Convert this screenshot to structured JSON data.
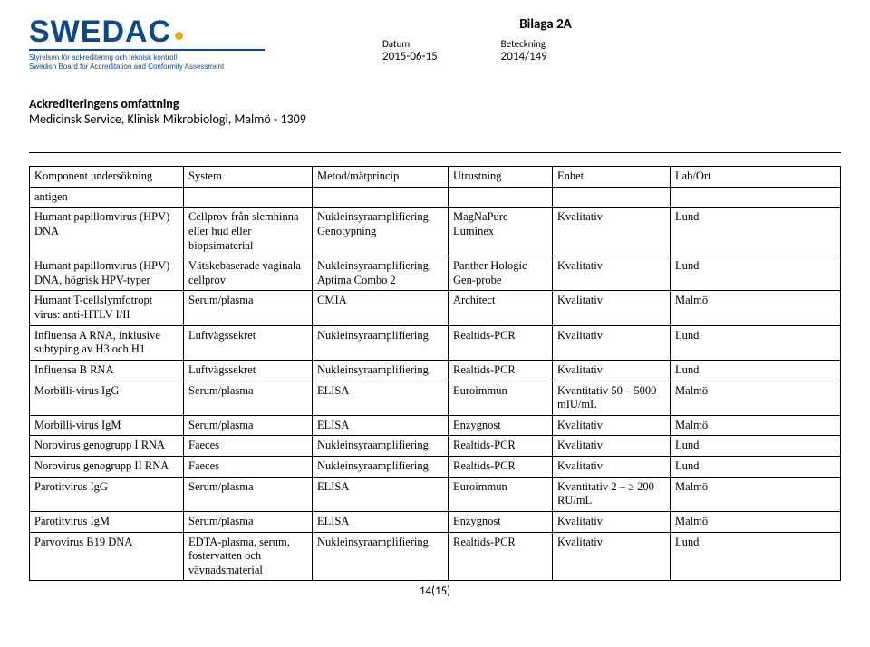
{
  "header": {
    "logo_text": "SWEDAC",
    "logo_sub_line1": "Styrelsen för ackreditering och teknisk kontroll",
    "logo_sub_line2": "Swedish Board for Accreditation and Conformity Assessment",
    "bilaga": "Bilaga 2A",
    "datum_label": "Datum",
    "datum_value": "2015-06-15",
    "beteckning_label": "Beteckning",
    "beteckning_value": "2014/149",
    "accred_title": "Ackrediteringens omfattning",
    "accred_sub": "Medicinsk Service, Klinisk Mikrobiologi, Malmö - 1309"
  },
  "table": {
    "columns": [
      "Komponent undersökning",
      "System",
      "Metod/mätprincip",
      "Utrustning",
      "Enhet",
      "Lab/Ort"
    ],
    "rows": [
      [
        "antigen",
        "",
        "",
        "",
        "",
        ""
      ],
      [
        "Humant papillomvirus (HPV) DNA",
        "Cellprov från slemhinna eller hud eller biopsimaterial",
        "Nukleinsyraamplifiering Genotypning",
        "MagNaPure Luminex",
        "Kvalitativ",
        "Lund"
      ],
      [
        "Humant papillomvirus (HPV) DNA, högrisk HPV-typer",
        "Vätskebaserade vaginala cellprov",
        "Nukleinsyraamplifiering Aptima Combo 2",
        "Panther Hologic Gen-probe",
        "Kvalitativ",
        "Lund"
      ],
      [
        "Humant T-cellslymfotropt virus: anti-HTLV I/II",
        "Serum/plasma",
        "CMIA",
        "Architect",
        "Kvalitativ",
        "Malmö"
      ],
      [
        "Influensa A RNA, inklusive subtyping av H3 och H1",
        "Luftvägssekret",
        "Nukleinsyraamplifiering",
        "Realtids-PCR",
        "Kvalitativ",
        "Lund"
      ],
      [
        "Influensa B RNA",
        "Luftvägssekret",
        "Nukleinsyraamplifiering",
        "Realtids-PCR",
        "Kvalitativ",
        "Lund"
      ],
      [
        "Morbilli-virus IgG",
        "Serum/plasma",
        "ELISA",
        "Euroimmun",
        "Kvantitativ 50 – 5000 mIU/mL",
        "Malmö"
      ],
      [
        "Morbilli-virus IgM",
        "Serum/plasma",
        "ELISA",
        "Enzygnost",
        "Kvalitativ",
        "Malmö"
      ],
      [
        "Norovirus genogrupp I RNA",
        "Faeces",
        "Nukleinsyraamplifiering",
        "Realtids-PCR",
        "Kvalitativ",
        "Lund"
      ],
      [
        "Norovirus genogrupp II RNA",
        "Faeces",
        "Nukleinsyraamplifiering",
        "Realtids-PCR",
        "Kvalitativ",
        "Lund"
      ],
      [
        "Parotitvirus IgG",
        "Serum/plasma",
        "ELISA",
        "Euroimmun",
        "Kvantitativ 2 – ≥ 200 RU/mL",
        "Malmö"
      ],
      [
        "Parotitvirus IgM",
        "Serum/plasma",
        "ELISA",
        "Enzygnost",
        "Kvalitativ",
        "Malmö"
      ],
      [
        "Parvovirus B19 DNA",
        "EDTA-plasma, serum, fostervatten och vävnadsmaterial",
        "Nukleinsyraamplifiering",
        "Realtids-PCR",
        "Kvalitativ",
        "Lund"
      ]
    ]
  },
  "page_number": "14(15)"
}
